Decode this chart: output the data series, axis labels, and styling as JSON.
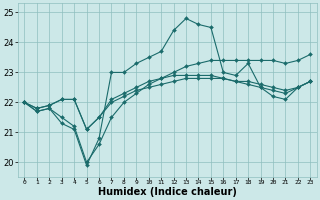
{
  "xlabel": "Humidex (Indice chaleur)",
  "ylabel": "",
  "xlim": [
    -0.5,
    23.5
  ],
  "ylim": [
    19.5,
    25.3
  ],
  "xtick_labels": [
    "0",
    "1",
    "2",
    "3",
    "4",
    "5",
    "6",
    "7",
    "8",
    "9",
    "10",
    "11",
    "12",
    "13",
    "14",
    "15",
    "16",
    "17",
    "18",
    "19",
    "20",
    "21",
    "22",
    "23"
  ],
  "yticks": [
    20,
    21,
    22,
    23,
    24,
    25
  ],
  "background_color": "#cce8e8",
  "grid_color": "#8fbfbf",
  "line_color": "#1a6b6b",
  "series": [
    [
      22.0,
      21.7,
      21.8,
      21.3,
      21.1,
      19.9,
      20.8,
      23.0,
      23.0,
      23.3,
      23.5,
      23.7,
      24.4,
      24.8,
      24.6,
      24.5,
      23.0,
      22.9,
      23.3,
      22.5,
      22.2,
      22.1,
      22.5,
      22.7
    ],
    [
      22.0,
      21.8,
      21.9,
      22.1,
      22.1,
      21.1,
      21.5,
      22.0,
      22.2,
      22.4,
      22.5,
      22.6,
      22.7,
      22.8,
      22.8,
      22.8,
      22.8,
      22.7,
      22.7,
      22.6,
      22.5,
      22.4,
      22.5,
      22.7
    ],
    [
      22.0,
      21.8,
      21.9,
      22.1,
      22.1,
      21.1,
      21.5,
      22.1,
      22.3,
      22.5,
      22.7,
      22.8,
      22.9,
      22.9,
      22.9,
      22.9,
      22.8,
      22.7,
      22.6,
      22.5,
      22.4,
      22.3,
      22.5,
      22.7
    ],
    [
      22.0,
      21.7,
      21.8,
      21.5,
      21.2,
      20.0,
      20.6,
      21.5,
      22.0,
      22.3,
      22.6,
      22.8,
      23.0,
      23.2,
      23.3,
      23.4,
      23.4,
      23.4,
      23.4,
      23.4,
      23.4,
      23.3,
      23.4,
      23.6
    ]
  ],
  "xlabel_fontsize": 7,
  "xtick_fontsize": 4.5,
  "ytick_fontsize": 6.0,
  "line_width": 0.8,
  "marker_size": 2.0
}
